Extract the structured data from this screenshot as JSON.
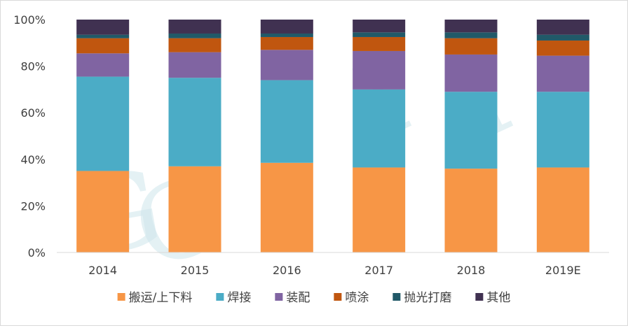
{
  "chart_data": {
    "type": "bar",
    "stacked": true,
    "percent": true,
    "categories": [
      "2014",
      "2015",
      "2016",
      "2017",
      "2018",
      "2019E"
    ],
    "series": [
      {
        "name": "搬运/上下料",
        "color": "#f79646",
        "values": [
          35,
          37,
          38.5,
          36.5,
          36,
          36.5
        ]
      },
      {
        "name": "焊接",
        "color": "#4bacc6",
        "values": [
          40.5,
          38,
          35.5,
          33.5,
          33,
          32.5
        ]
      },
      {
        "name": "装配",
        "color": "#8064a2",
        "values": [
          10,
          11,
          13,
          16.5,
          16,
          15.5
        ]
      },
      {
        "name": "喷涂",
        "color": "#c0560f",
        "values": [
          6.5,
          6,
          5.5,
          6,
          7,
          6.5
        ]
      },
      {
        "name": "抛光打磨",
        "color": "#215968",
        "values": [
          1.5,
          2,
          1.5,
          2,
          2.5,
          2.5
        ]
      },
      {
        "name": "其他",
        "color": "#403151",
        "values": [
          6.5,
          6,
          6,
          5.5,
          5.5,
          6.5
        ]
      }
    ],
    "yticks": [
      "0%",
      "20%",
      "40%",
      "60%",
      "80%",
      "100%"
    ],
    "ylim": [
      0,
      100
    ],
    "grid": false,
    "legend": "bottom",
    "watermark": "GGII"
  }
}
